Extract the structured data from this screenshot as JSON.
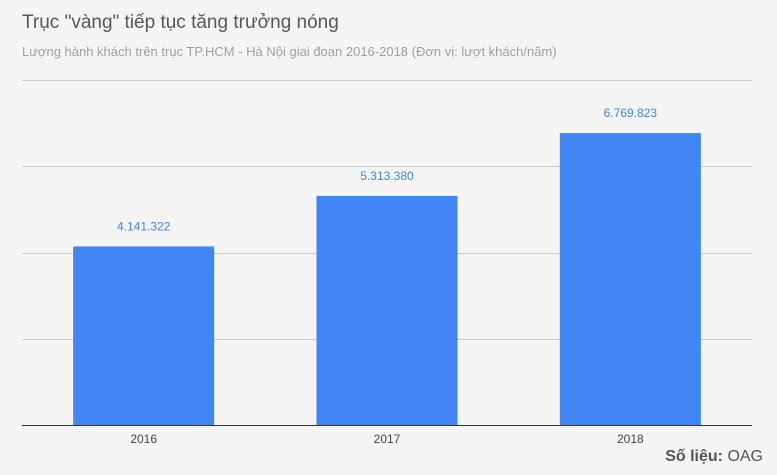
{
  "chart_data": {
    "type": "bar",
    "title": "Trục \"vàng\" tiếp tục tăng trưởng nóng",
    "subtitle": "Lượng hành khách trên trục TP.HCM - Hà Nội giai đoạn 2016-2018 (Đơn vị: lượt khách/năm)",
    "categories": [
      "2016",
      "2017",
      "2018"
    ],
    "values": [
      4141322,
      5313380,
      6769823
    ],
    "data_labels": [
      "4.141.322",
      "5.313.380",
      "6.769.823"
    ],
    "xlabel": "",
    "ylabel": "",
    "ylim": [
      0,
      8000000
    ],
    "gridlines": [
      0,
      2000000,
      4000000,
      6000000,
      8000000
    ],
    "grid": true,
    "bar_color": "#4285f4",
    "label_color": "#4285f4"
  },
  "source": {
    "label": "Số liệu:",
    "value": "OAG"
  }
}
